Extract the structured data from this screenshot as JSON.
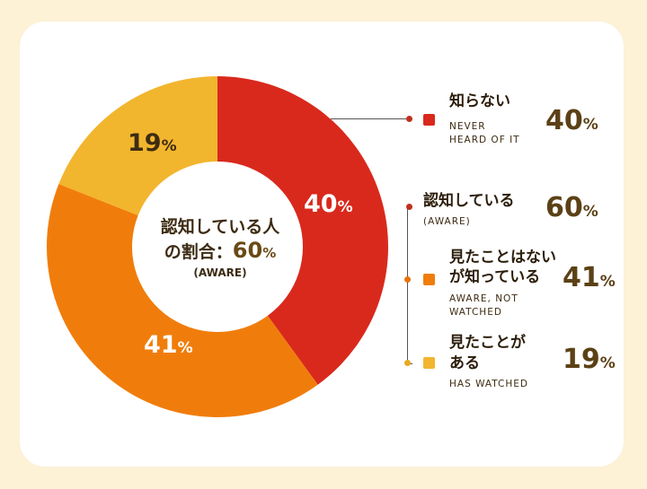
{
  "chart_data": {
    "type": "pie",
    "style": "donut",
    "slices": [
      {
        "label": "知らない",
        "sublabel": "NEVER HEARD OF IT",
        "value": 40,
        "color": "#d9291c"
      },
      {
        "label": "見たことはないが知っている",
        "sublabel": "AWARE, NOT WATCHED",
        "value": 41,
        "color": "#f07d0b"
      },
      {
        "label": "見たことがある",
        "sublabel": "HAS WATCHED",
        "value": 19,
        "color": "#f2b52e"
      }
    ],
    "center": {
      "line1": "認知している人",
      "line2_prefix": "の割合：",
      "line2_value": "60",
      "line2_unit": "%",
      "sub": "(AWARE)"
    },
    "aware_group": {
      "label": "認知している",
      "sublabel": "(AWARE)",
      "value": 60,
      "dot_color": "#c0301f"
    }
  },
  "legend": {
    "never": {
      "title": "知らない",
      "sub1": "NEVER",
      "sub2": "HEARD OF IT",
      "value": "40",
      "unit": "%",
      "dot_color": "#c0301f",
      "swatch_color": "#d9291c"
    },
    "aware": {
      "title": "認知している",
      "sub1": "(AWARE)",
      "value": "60",
      "unit": "%"
    },
    "not_watched": {
      "title1": "見たことはない",
      "title2": "が知っている",
      "sub1": "AWARE, NOT",
      "sub2": "WATCHED",
      "value": "41",
      "unit": "%",
      "dot_color": "#e8730a",
      "swatch_color": "#f07d0b"
    },
    "watched": {
      "title1": "見たことが",
      "title2": "ある",
      "sub1": "HAS WATCHED",
      "value": "19",
      "unit": "%",
      "dot_color": "#e9a81f",
      "swatch_color": "#f2b52e"
    }
  },
  "slice_labels": {
    "never": {
      "value": "40",
      "unit": "%",
      "color": "#ffffff"
    },
    "not_watched": {
      "value": "41",
      "unit": "%",
      "color": "#ffffff"
    },
    "watched": {
      "value": "19",
      "unit": "%",
      "color": "#3d2b12"
    }
  }
}
